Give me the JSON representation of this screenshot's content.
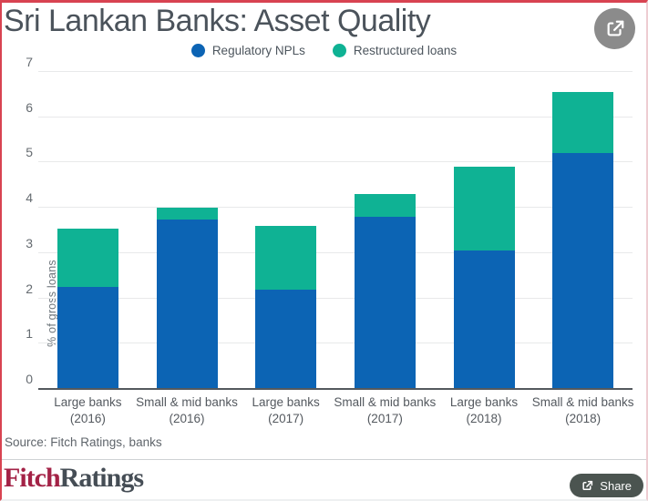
{
  "header": {
    "share_icon": "share-export-icon"
  },
  "chart_data": {
    "type": "bar",
    "stacked": true,
    "title": "Sri Lankan Banks: Asset Quality",
    "ylabel": "% of gross loans",
    "ylim": [
      0,
      7
    ],
    "yticks": [
      0,
      1,
      2,
      3,
      4,
      5,
      6,
      7
    ],
    "grid": true,
    "legend_position": "top-center",
    "categories": [
      {
        "line1": "Large banks",
        "line2": "(2016)"
      },
      {
        "line1": "Small & mid banks",
        "line2": "(2016)"
      },
      {
        "line1": "Large banks",
        "line2": "(2017)"
      },
      {
        "line1": "Small & mid banks",
        "line2": "(2017)"
      },
      {
        "line1": "Large banks",
        "line2": "(2018)"
      },
      {
        "line1": "Small & mid banks",
        "line2": "(2018)"
      }
    ],
    "series": [
      {
        "name": "Regulatory NPLs",
        "color": "#0c64b4",
        "values": [
          2.25,
          3.75,
          2.2,
          3.8,
          3.05,
          5.2
        ]
      },
      {
        "name": "Restructured loans",
        "color": "#0fb294",
        "values": [
          1.3,
          0.25,
          1.4,
          0.5,
          1.85,
          1.35
        ]
      }
    ],
    "stack_totals": [
      3.55,
      4.0,
      3.6,
      4.3,
      4.9,
      6.55
    ]
  },
  "source": "Source: Fitch Ratings, banks",
  "footer": {
    "brand_primary": "Fitch",
    "brand_secondary": "Ratings",
    "share_label": "Share",
    "share_icon": "share-export-icon"
  },
  "colors": {
    "bar_blue": "#0c64b4",
    "bar_teal": "#0fb294",
    "frame_border_red": "#d84351",
    "title_text": "#4b535b",
    "brand_red": "#a32246",
    "brand_dark": "#454d55",
    "share_circle_bg": "#8b8b8b",
    "share_pill_bg": "#4b5450",
    "axis_line": "#54595e",
    "gridline": "#e8e9ea"
  }
}
